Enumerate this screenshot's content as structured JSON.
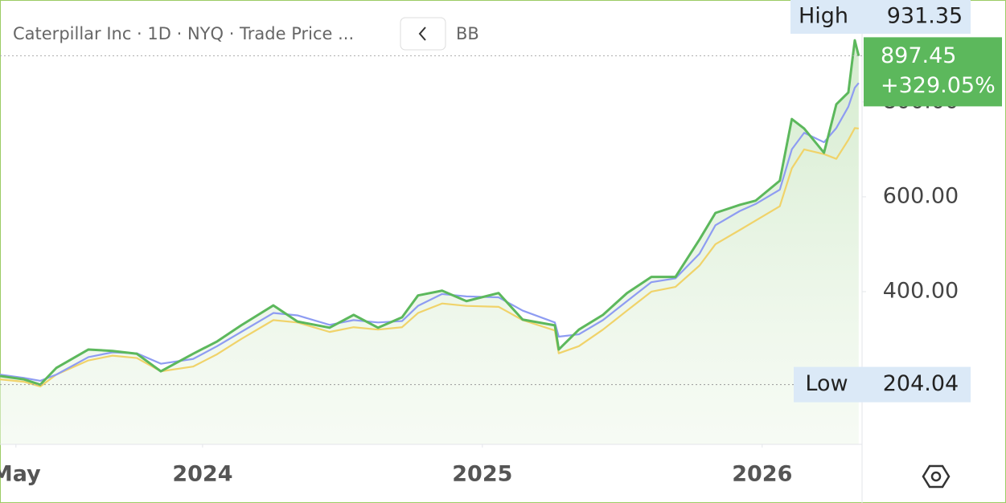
{
  "chart_data": {
    "type": "line",
    "title": "Caterpillar Inc · 1D · NYQ · Trade Price ...",
    "indicator": "BB",
    "x": [
      2023.276,
      2023.362,
      2023.42,
      2023.477,
      2023.592,
      2023.678,
      2023.765,
      2023.851,
      2023.966,
      2024.052,
      2024.138,
      2024.253,
      2024.339,
      2024.454,
      2024.54,
      2024.627,
      2024.713,
      2024.77,
      2024.856,
      2024.943,
      2025.058,
      2025.144,
      2025.259,
      2025.273,
      2025.345,
      2025.431,
      2025.517,
      2025.604,
      2025.69,
      2025.776,
      2025.833,
      2025.92,
      2025.977,
      2026.063,
      2026.106,
      2026.15,
      2026.221,
      2026.265,
      2026.308,
      2026.331,
      2026.345
    ],
    "series": [
      {
        "color": "#5cb85c",
        "values": [
          222,
          215,
          204,
          239,
          278,
          275,
          269,
          232,
          269,
          295,
          329,
          371,
          337,
          324,
          351,
          324,
          346,
          392,
          402,
          380,
          397,
          341,
          329,
          278,
          320,
          351,
          397,
          431,
          431,
          510,
          566,
          583,
          592,
          634,
          764,
          744,
          693,
          795,
          820,
          930,
          897
        ]
      },
      {
        "color": "#8e9cf2",
        "values": [
          225,
          218,
          212,
          225,
          262,
          272,
          270,
          248,
          258,
          285,
          315,
          355,
          350,
          330,
          340,
          335,
          338,
          370,
          395,
          390,
          388,
          360,
          335,
          305,
          310,
          340,
          380,
          420,
          428,
          480,
          540,
          570,
          585,
          615,
          700,
          735,
          715,
          745,
          790,
          830,
          840
        ]
      },
      {
        "color": "#f0d36a",
        "values": [
          215,
          210,
          200,
          225,
          255,
          265,
          260,
          232,
          242,
          268,
          300,
          340,
          335,
          315,
          325,
          320,
          325,
          355,
          375,
          370,
          368,
          340,
          318,
          270,
          285,
          320,
          360,
          400,
          410,
          455,
          500,
          530,
          550,
          580,
          660,
          700,
          690,
          680,
          720,
          745,
          744
        ]
      }
    ],
    "xlim": [
      2023.276,
      2026.357
    ],
    "xticks": [
      {
        "value": 2023.333,
        "label": "May"
      },
      2024,
      2025,
      2026
    ],
    "ylim": [
      78,
      1015
    ],
    "yticks": [
      {
        "value": 400,
        "label": "400.00"
      },
      {
        "value": 600,
        "label": "600.00"
      },
      {
        "value": 800,
        "label": "800.00"
      }
    ],
    "high": {
      "label": "High",
      "value": 931.35
    },
    "low": {
      "label": "Low",
      "value": 204.04
    },
    "last": {
      "value": 897.45,
      "change": 329.05,
      "change_label": "+329.05%"
    }
  }
}
